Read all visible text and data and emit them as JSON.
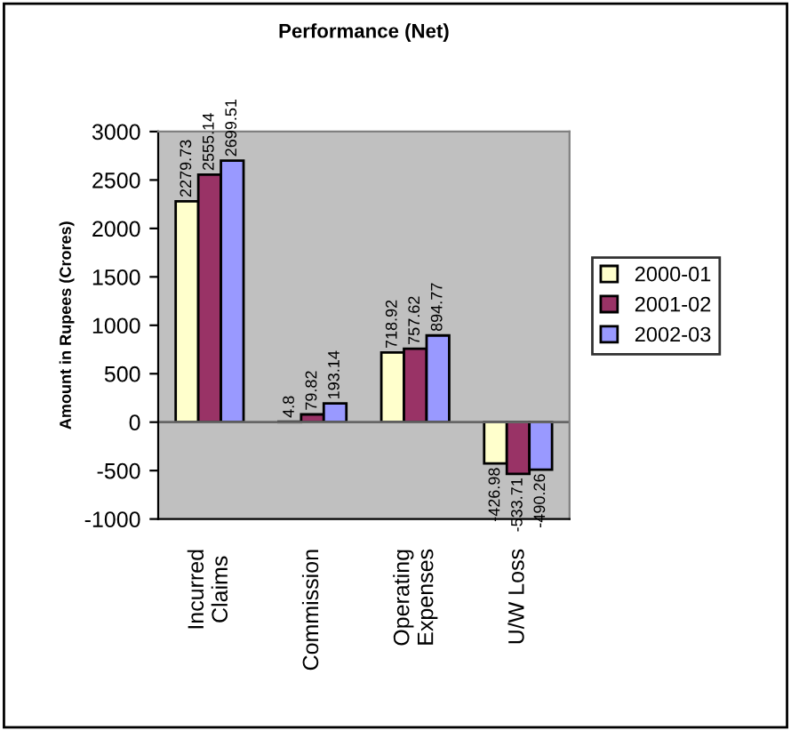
{
  "chart_data": {
    "type": "bar",
    "title": "Performance (Net)",
    "ylabel": "Amount in Rupees (Crores)",
    "categories": [
      "Incurred\nClaims",
      "Commission",
      "Operating\nExpenses",
      "U/W Loss"
    ],
    "series": [
      {
        "name": "2000-01",
        "color": "#ffffcc",
        "values": [
          2279.73,
          4.8,
          718.92,
          -426.98
        ]
      },
      {
        "name": "2001-02",
        "color": "#993366",
        "values": [
          2555.14,
          79.82,
          757.62,
          -533.71
        ]
      },
      {
        "name": "2002-03",
        "color": "#9999ff",
        "values": [
          2699.51,
          193.14,
          894.77,
          -490.26
        ]
      }
    ],
    "ylim": [
      -1000,
      3000
    ],
    "yticks": [
      -1000,
      -500,
      0,
      500,
      1000,
      1500,
      2000,
      2500,
      3000
    ],
    "data_labels": true,
    "legend": "right"
  }
}
